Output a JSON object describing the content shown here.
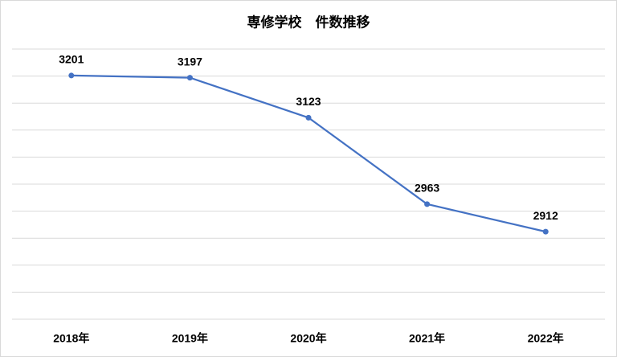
{
  "chart_data": {
    "type": "line",
    "title": "専修学校　件数推移",
    "categories": [
      "2018年",
      "2019年",
      "2020年",
      "2021年",
      "2022年"
    ],
    "series": [
      {
        "color": "#4472c4",
        "values": [
          3201,
          3197,
          3123,
          2963,
          2912
        ]
      }
    ],
    "ylim": [
      2750,
      3250
    ],
    "yticks": [
      2750,
      2800,
      2850,
      2900,
      2950,
      3000,
      3050,
      3100,
      3150,
      3200,
      3250
    ],
    "grid": true
  }
}
